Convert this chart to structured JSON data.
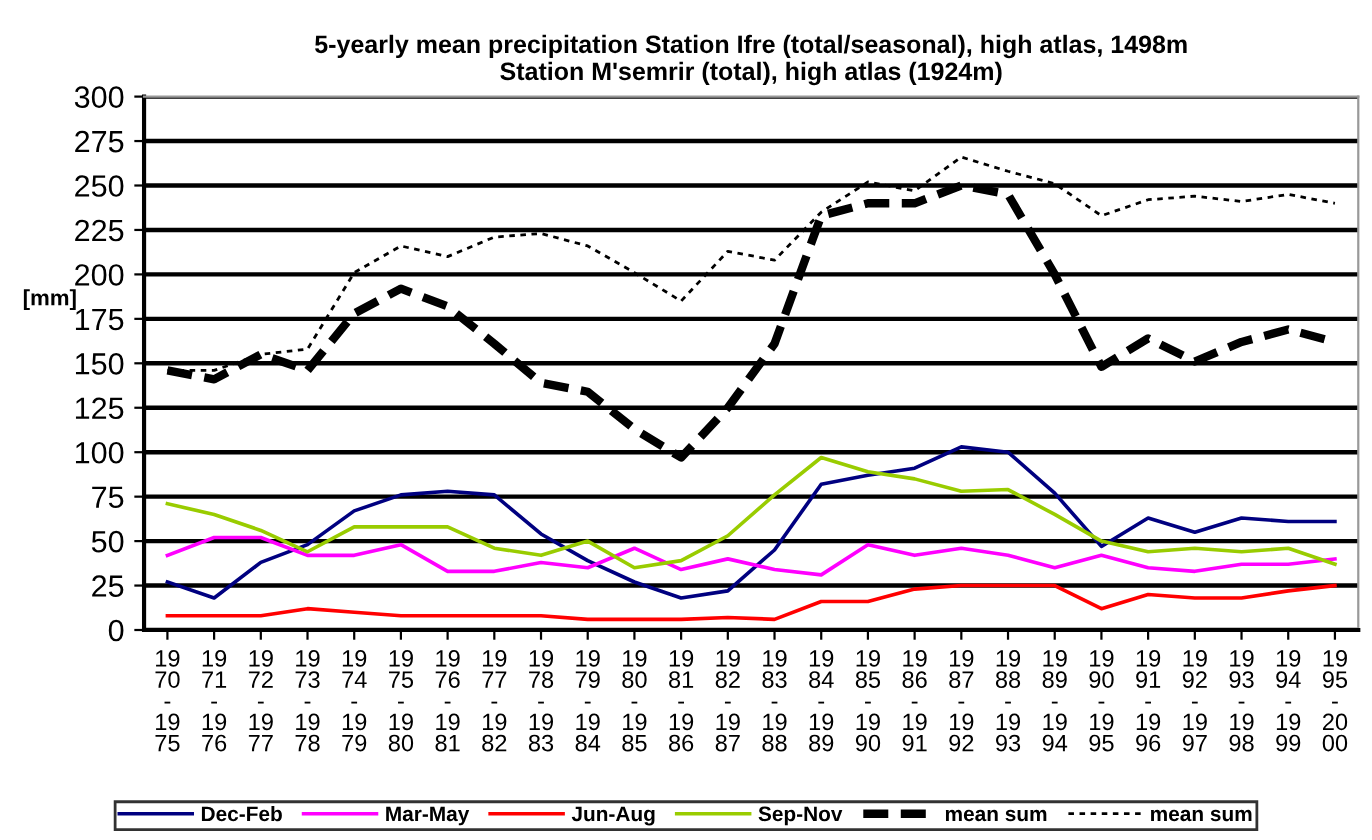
{
  "chart_data": {
    "type": "line",
    "title": "5-yearly mean precipitation Station Ifre (total/seasonal), high atlas, 1498m\nStation M'semrir (total), high atlas (1924m)",
    "ylabel": "[mm]",
    "categories": [
      "1970-1975",
      "1971-1976",
      "1972-1977",
      "1973-1978",
      "1974-1979",
      "1975-1980",
      "1976-1981",
      "1977-1982",
      "1978-1983",
      "1979-1984",
      "1980-1985",
      "1981-1986",
      "1982-1987",
      "1983-1988",
      "1984-1989",
      "1985-1990",
      "1986-1991",
      "1987-1992",
      "1988-1993",
      "1989-1994",
      "1990-1995",
      "1991-1996",
      "1992-1997",
      "1993-1998",
      "1994-1999",
      "1995-2000"
    ],
    "series": [
      {
        "name": "Dec-Feb",
        "color": "#000080",
        "line_style": "solid",
        "values": [
          27,
          18,
          38,
          48,
          67,
          76,
          78,
          76,
          54,
          39,
          27,
          18,
          22,
          45,
          82,
          87,
          91,
          103,
          100,
          77,
          47,
          63,
          55,
          63,
          61,
          61
        ]
      },
      {
        "name": "Mar-May",
        "color": "#ff00ff",
        "line_style": "solid",
        "values": [
          42,
          52,
          52,
          42,
          42,
          48,
          33,
          33,
          38,
          35,
          46,
          34,
          40,
          34,
          31,
          48,
          42,
          46,
          42,
          35,
          42,
          35,
          33,
          37,
          37,
          40
        ]
      },
      {
        "name": "Jun-Aug",
        "color": "#ff0000",
        "line_style": "solid",
        "values": [
          8,
          8,
          8,
          12,
          10,
          8,
          8,
          8,
          8,
          6,
          6,
          6,
          7,
          6,
          16,
          16,
          23,
          25,
          25,
          25,
          12,
          20,
          18,
          18,
          22,
          25
        ]
      },
      {
        "name": "Sep-Nov",
        "color": "#99cc00",
        "line_style": "solid",
        "values": [
          71,
          65,
          56,
          44,
          58,
          58,
          58,
          46,
          42,
          50,
          35,
          39,
          53,
          76,
          97,
          89,
          85,
          78,
          79,
          65,
          50,
          44,
          46,
          44,
          46,
          37
        ]
      },
      {
        "name": "mean sum",
        "color": "#000000",
        "line_style": "dashed",
        "values": [
          146,
          141,
          155,
          146,
          178,
          192,
          182,
          161,
          139,
          134,
          113,
          97,
          125,
          161,
          233,
          240,
          240,
          250,
          245,
          200,
          148,
          164,
          151,
          162,
          169,
          162
        ]
      },
      {
        "name": "mean sum",
        "color": "#000000",
        "line_style": "dotted",
        "values": [
          146,
          146,
          155,
          158,
          201,
          216,
          210,
          221,
          223,
          216,
          201,
          185,
          213,
          208,
          235,
          252,
          247,
          266,
          258,
          251,
          233,
          242,
          244,
          241,
          245,
          240
        ]
      }
    ],
    "ylim": [
      0,
      300
    ],
    "yticks": [
      0,
      25,
      50,
      75,
      100,
      125,
      150,
      175,
      200,
      225,
      250,
      275,
      300
    ],
    "grid": "y",
    "legend": "bottom",
    "marker": "none"
  }
}
